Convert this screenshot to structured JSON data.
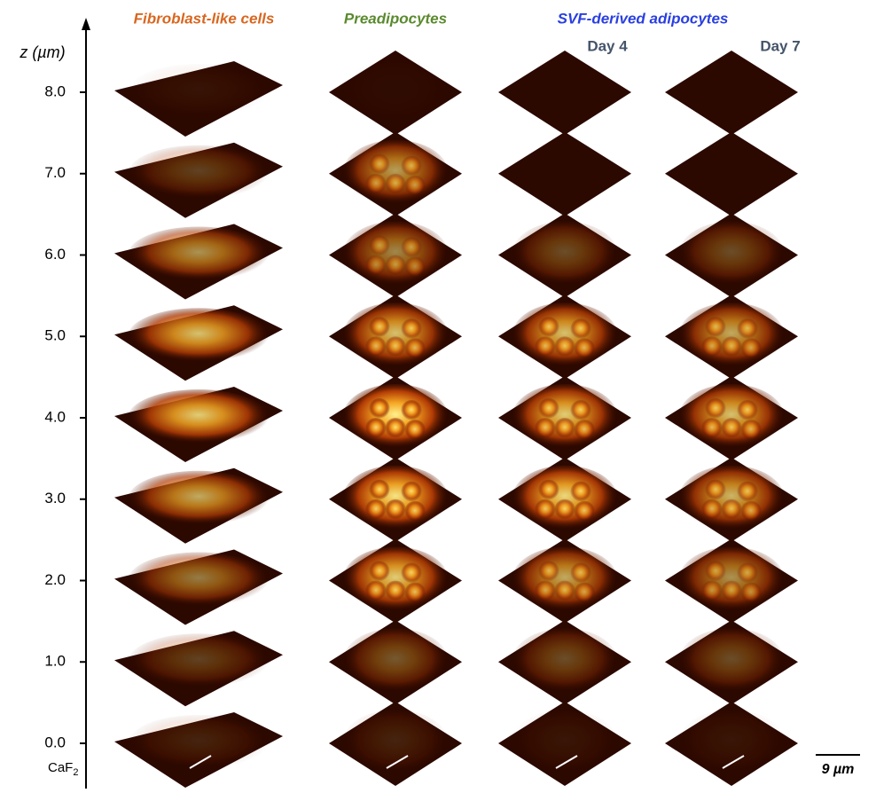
{
  "axis": {
    "label": "z (µm)",
    "ticks": [
      "8.0",
      "7.0",
      "6.0",
      "5.0",
      "4.0",
      "3.0",
      "2.0",
      "1.0",
      "0.0"
    ],
    "substrate": {
      "base": "CaF",
      "subscript": "2"
    }
  },
  "columns": {
    "fibroblast": "Fibroblast-like cells",
    "preadipocytes": "Preadipocytes",
    "adipocytes": "SVF-derived adipocytes",
    "day4": "Day 4",
    "day7": "Day 7"
  },
  "scale_bar": "9 µm"
}
